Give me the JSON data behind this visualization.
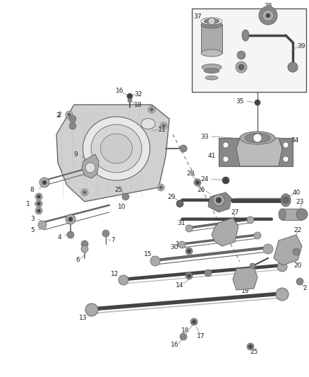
{
  "figsize": [
    4.39,
    5.33
  ],
  "dpi": 100,
  "bg": "#ffffff",
  "gray1": "#aaaaaa",
  "gray2": "#888888",
  "gray3": "#666666",
  "gray4": "#444444",
  "gray5": "#bbbbbb",
  "box_edge": "#333333",
  "label_fs": 6.5,
  "lw_thin": 0.6,
  "lw_med": 1.0,
  "lw_thick": 1.8,
  "lw_rail": 2.5
}
